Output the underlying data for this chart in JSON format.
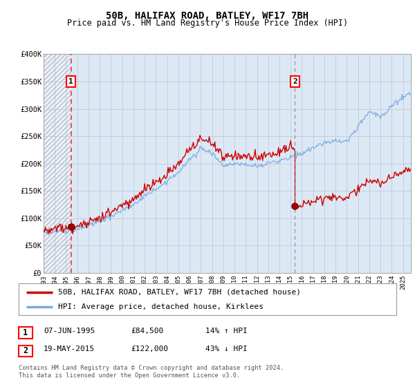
{
  "title": "50B, HALIFAX ROAD, BATLEY, WF17 7BH",
  "subtitle": "Price paid vs. HM Land Registry's House Price Index (HPI)",
  "legend_line1": "50B, HALIFAX ROAD, BATLEY, WF17 7BH (detached house)",
  "legend_line2": "HPI: Average price, detached house, Kirklees",
  "annotation1": {
    "num": "1",
    "date": "07-JUN-1995",
    "price": "£84,500",
    "hpi": "14% ↑ HPI"
  },
  "annotation2": {
    "num": "2",
    "date": "19-MAY-2015",
    "price": "£122,000",
    "hpi": "43% ↓ HPI"
  },
  "footnote": "Contains HM Land Registry data © Crown copyright and database right 2024.\nThis data is licensed under the Open Government Licence v3.0.",
  "bg_color": "#dce9f5",
  "plot_bg": "#ffffff",
  "grid_color": "#b0b8d0",
  "red_line_color": "#cc0000",
  "blue_line_color": "#7aaadd",
  "marker_color": "#990000",
  "vline1_color": "#dd2222",
  "vline2_color": "#888888",
  "sale1_x": 1995.44,
  "sale1_y": 84500,
  "sale2_x": 2015.38,
  "sale2_y": 122000,
  "ylim": [
    0,
    400000
  ],
  "xlim": [
    1993.0,
    2025.7
  ],
  "yticks": [
    0,
    50000,
    100000,
    150000,
    200000,
    250000,
    300000,
    350000,
    400000
  ],
  "ytick_labels": [
    "£0",
    "£50K",
    "£100K",
    "£150K",
    "£200K",
    "£250K",
    "£300K",
    "£350K",
    "£400K"
  ],
  "xticks": [
    1993,
    1994,
    1995,
    1996,
    1997,
    1998,
    1999,
    2000,
    2001,
    2002,
    2003,
    2004,
    2005,
    2006,
    2007,
    2008,
    2009,
    2010,
    2011,
    2012,
    2013,
    2014,
    2015,
    2016,
    2017,
    2018,
    2019,
    2020,
    2021,
    2022,
    2023,
    2024,
    2025
  ]
}
